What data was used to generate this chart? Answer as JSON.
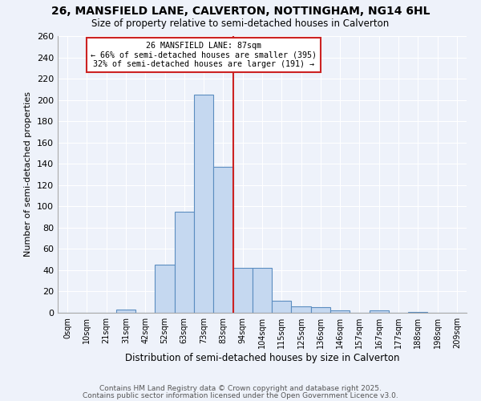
{
  "title_line1": "26, MANSFIELD LANE, CALVERTON, NOTTINGHAM, NG14 6HL",
  "title_line2": "Size of property relative to semi-detached houses in Calverton",
  "xlabel": "Distribution of semi-detached houses by size in Calverton",
  "ylabel": "Number of semi-detached properties",
  "footnote1": "Contains HM Land Registry data © Crown copyright and database right 2025.",
  "footnote2": "Contains public sector information licensed under the Open Government Licence v3.0.",
  "bar_labels": [
    "0sqm",
    "10sqm",
    "21sqm",
    "31sqm",
    "42sqm",
    "52sqm",
    "63sqm",
    "73sqm",
    "83sqm",
    "94sqm",
    "104sqm",
    "115sqm",
    "125sqm",
    "136sqm",
    "146sqm",
    "157sqm",
    "167sqm",
    "177sqm",
    "188sqm",
    "198sqm",
    "209sqm"
  ],
  "bar_values": [
    0,
    0,
    0,
    3,
    0,
    45,
    95,
    205,
    137,
    42,
    42,
    11,
    6,
    5,
    2,
    0,
    2,
    0,
    1,
    0,
    0
  ],
  "bar_color": "#c5d8f0",
  "bar_edge_color": "#5b8dc0",
  "vline_x": 8.5,
  "annotation_title": "26 MANSFIELD LANE: 87sqm",
  "annotation_line1": "← 66% of semi-detached houses are smaller (395)",
  "annotation_line2": "32% of semi-detached houses are larger (191) →",
  "annotation_box_color": "#cc2222",
  "vline_color": "#cc2222",
  "ylim": [
    0,
    260
  ],
  "yticks": [
    0,
    20,
    40,
    60,
    80,
    100,
    120,
    140,
    160,
    180,
    200,
    220,
    240,
    260
  ],
  "bg_color": "#eef2fa",
  "grid_color": "#ffffff"
}
